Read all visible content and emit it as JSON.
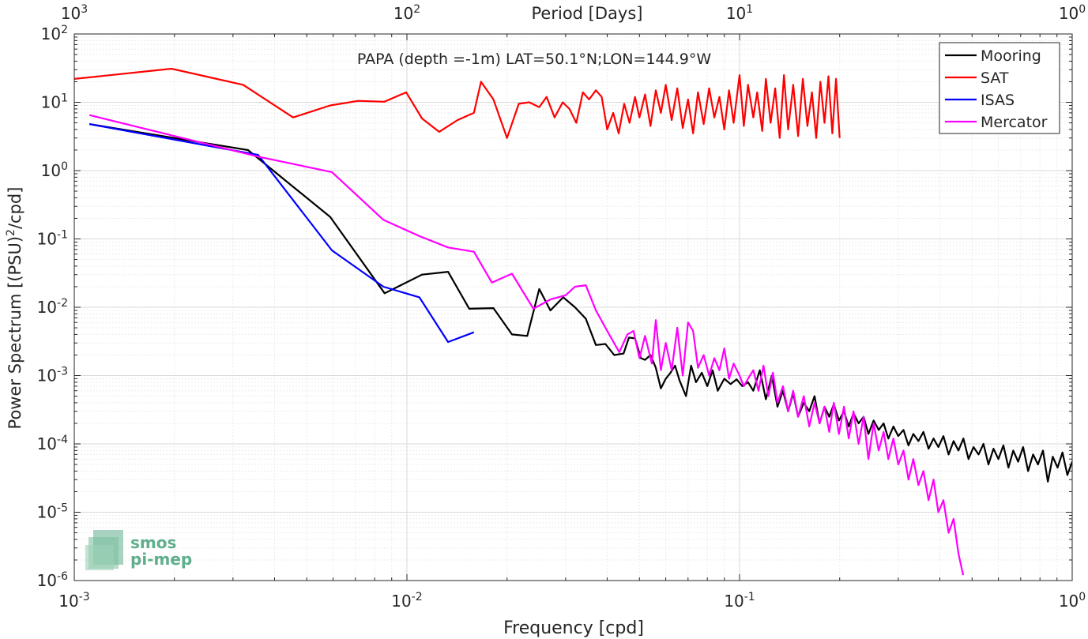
{
  "chart_data": {
    "type": "line",
    "title": "PAPA (depth =-1m) LAT=50.1°N;LON=144.9°W",
    "xlabel": "Frequency [cpd]",
    "ylabel_main": "Power Spectrum [(PSU)",
    "ylabel_sup": "2",
    "ylabel_tail": "/cpd]",
    "top_xlabel": "Period [Days]",
    "xscale": "log",
    "yscale": "log",
    "xlim": [
      0.001,
      1
    ],
    "ylim": [
      1e-06,
      100
    ],
    "grid": true,
    "legend_position": "top-right",
    "x_ticks": [
      {
        "value": 0.001,
        "base": "10",
        "exp": "-3"
      },
      {
        "value": 0.01,
        "base": "10",
        "exp": "-2"
      },
      {
        "value": 0.1,
        "base": "10",
        "exp": "-1"
      },
      {
        "value": 1,
        "base": "10",
        "exp": "0"
      }
    ],
    "top_ticks": [
      {
        "freq": 0.001,
        "base": "10",
        "exp": "3"
      },
      {
        "freq": 0.01,
        "base": "10",
        "exp": "2"
      },
      {
        "freq": 0.1,
        "base": "10",
        "exp": "1"
      },
      {
        "freq": 1,
        "base": "10",
        "exp": "0"
      }
    ],
    "y_ticks": [
      {
        "value": 1e-06,
        "base": "10",
        "exp": "-6"
      },
      {
        "value": 1e-05,
        "base": "10",
        "exp": "-5"
      },
      {
        "value": 0.0001,
        "base": "10",
        "exp": "-4"
      },
      {
        "value": 0.001,
        "base": "10",
        "exp": "-3"
      },
      {
        "value": 0.01,
        "base": "10",
        "exp": "-2"
      },
      {
        "value": 0.1,
        "base": "10",
        "exp": "-1"
      },
      {
        "value": 1,
        "base": "10",
        "exp": "0"
      },
      {
        "value": 10,
        "base": "10",
        "exp": "1"
      },
      {
        "value": 100,
        "base": "10",
        "exp": "2"
      }
    ],
    "series": [
      {
        "name": "Mooring",
        "color": "#000000",
        "x": [
          0.00111,
          0.00333,
          0.00588,
          0.00857,
          0.0111,
          0.0133,
          0.0154,
          0.0182,
          0.0207,
          0.023,
          0.025,
          0.027,
          0.0295,
          0.032,
          0.0345,
          0.037,
          0.0395,
          0.042,
          0.0448,
          0.0465,
          0.0485,
          0.0505,
          0.052,
          0.054,
          0.056,
          0.058,
          0.06,
          0.062,
          0.064,
          0.066,
          0.069,
          0.0715,
          0.074,
          0.077,
          0.08,
          0.083,
          0.086,
          0.09,
          0.094,
          0.098,
          0.102,
          0.106,
          0.11,
          0.115,
          0.12,
          0.125,
          0.13,
          0.135,
          0.14,
          0.145,
          0.15,
          0.156,
          0.162,
          0.168,
          0.174,
          0.18,
          0.186,
          0.192,
          0.199,
          0.206,
          0.213,
          0.22,
          0.228,
          0.236,
          0.244,
          0.253,
          0.262,
          0.271,
          0.28,
          0.29,
          0.3,
          0.311,
          0.322,
          0.333,
          0.345,
          0.357,
          0.37,
          0.383,
          0.396,
          0.41,
          0.425,
          0.44,
          0.455,
          0.471,
          0.488,
          0.505,
          0.523,
          0.541,
          0.56,
          0.58,
          0.6,
          0.621,
          0.643,
          0.665,
          0.688,
          0.712,
          0.737,
          0.763,
          0.789,
          0.817,
          0.845,
          0.874,
          0.904,
          0.935,
          0.967,
          1.0
        ],
        "y": [
          4.8,
          2.0,
          0.21,
          0.016,
          0.03,
          0.033,
          0.0095,
          0.0097,
          0.004,
          0.0038,
          0.0185,
          0.009,
          0.014,
          0.01,
          0.0068,
          0.0028,
          0.0029,
          0.002,
          0.0021,
          0.0036,
          0.0035,
          0.0018,
          0.0017,
          0.002,
          0.0013,
          0.00065,
          0.0009,
          0.0011,
          0.0014,
          0.00085,
          0.0005,
          0.0014,
          0.0008,
          0.0011,
          0.0007,
          0.0012,
          0.0006,
          0.0009,
          0.00075,
          0.00088,
          0.0007,
          0.0008,
          0.0006,
          0.0012,
          0.00045,
          0.001,
          0.00035,
          0.0006,
          0.0003,
          0.00055,
          0.00025,
          0.0004,
          0.0003,
          0.0005,
          0.0002,
          0.00035,
          0.00025,
          0.00038,
          0.00022,
          0.0003,
          0.00018,
          0.00028,
          0.0002,
          0.00025,
          0.00014,
          0.00022,
          0.00016,
          0.0002,
          0.00012,
          0.00018,
          0.00013,
          0.00016,
          9.5e-05,
          0.00014,
          0.00011,
          0.00015,
          8.5e-05,
          0.00012,
          9e-05,
          0.00013,
          7e-05,
          0.00011,
          8e-05,
          0.00012,
          6e-05,
          9e-05,
          7e-05,
          0.0001,
          5e-05,
          8.5e-05,
          6e-05,
          9.5e-05,
          4.5e-05,
          8e-05,
          5.5e-05,
          9e-05,
          4e-05,
          7e-05,
          5e-05,
          8e-05,
          2.8e-05,
          6.5e-05,
          4.5e-05,
          7.5e-05,
          3.5e-05,
          5.5e-05
        ]
      },
      {
        "name": "SAT",
        "color": "#ff0000",
        "x": [
          0.001,
          0.00196,
          0.00322,
          0.00455,
          0.00588,
          0.00714,
          0.00855,
          0.00995,
          0.0111,
          0.0125,
          0.0142,
          0.0159,
          0.0167,
          0.0182,
          0.02,
          0.0217,
          0.0233,
          0.025,
          0.0263,
          0.0278,
          0.0294,
          0.0308,
          0.0323,
          0.0338,
          0.0353,
          0.037,
          0.0385,
          0.04,
          0.0417,
          0.0433,
          0.045,
          0.0467,
          0.0485,
          0.05,
          0.052,
          0.054,
          0.056,
          0.058,
          0.06,
          0.0625,
          0.065,
          0.0675,
          0.07,
          0.0725,
          0.075,
          0.078,
          0.081,
          0.084,
          0.087,
          0.09,
          0.093,
          0.096,
          0.1,
          0.103,
          0.106,
          0.11,
          0.113,
          0.117,
          0.12,
          0.124,
          0.128,
          0.132,
          0.136,
          0.14,
          0.145,
          0.15,
          0.155,
          0.16,
          0.165,
          0.17,
          0.175,
          0.18,
          0.185,
          0.19,
          0.195,
          0.2
        ],
        "y": [
          22,
          31,
          18,
          6.0,
          9.0,
          10.5,
          10.2,
          14.0,
          5.8,
          3.7,
          5.5,
          7.0,
          20.0,
          11.0,
          3.0,
          9.5,
          10.0,
          8.5,
          12.0,
          6.0,
          10.0,
          8.0,
          5.0,
          14.0,
          11.0,
          15.0,
          12.0,
          4.0,
          7.0,
          3.5,
          9.5,
          5.0,
          12.0,
          6.0,
          13.0,
          4.5,
          15.0,
          7.0,
          18.0,
          5.5,
          16.0,
          4.2,
          11.0,
          3.5,
          14.0,
          4.8,
          16.0,
          6.0,
          12.0,
          4.0,
          15.0,
          5.0,
          25.0,
          4.5,
          18.0,
          6.0,
          14.0,
          3.8,
          22.0,
          5.0,
          16.0,
          3.0,
          25.0,
          4.0,
          18.0,
          3.2,
          22.0,
          4.5,
          14.0,
          3.0,
          20.0,
          5.0,
          24.0,
          3.5,
          22.0,
          3.0
        ]
      },
      {
        "name": "ISAS",
        "color": "#0000ff",
        "x": [
          0.00111,
          0.00357,
          0.00595,
          0.0085,
          0.0109,
          0.0133,
          0.0159
        ],
        "y": [
          4.8,
          1.7,
          0.068,
          0.02,
          0.014,
          0.0031,
          0.0043
        ]
      },
      {
        "name": "Mercator",
        "color": "#ff00ff",
        "x": [
          0.00111,
          0.00357,
          0.00595,
          0.0085,
          0.0109,
          0.0133,
          0.0159,
          0.018,
          0.0207,
          0.024,
          0.027,
          0.03,
          0.032,
          0.0345,
          0.037,
          0.04,
          0.0435,
          0.046,
          0.048,
          0.05,
          0.052,
          0.0545,
          0.056,
          0.058,
          0.06,
          0.0625,
          0.065,
          0.0675,
          0.07,
          0.0725,
          0.075,
          0.078,
          0.081,
          0.084,
          0.087,
          0.09,
          0.093,
          0.096,
          0.1,
          0.103,
          0.106,
          0.11,
          0.114,
          0.118,
          0.122,
          0.126,
          0.13,
          0.135,
          0.14,
          0.145,
          0.15,
          0.156,
          0.162,
          0.168,
          0.174,
          0.18,
          0.186,
          0.192,
          0.199,
          0.206,
          0.213,
          0.22,
          0.228,
          0.236,
          0.244,
          0.253,
          0.262,
          0.271,
          0.28,
          0.29,
          0.3,
          0.311,
          0.322,
          0.333,
          0.345,
          0.357,
          0.37,
          0.383,
          0.396,
          0.41,
          0.425,
          0.44,
          0.455,
          0.47
        ],
        "y": [
          6.5,
          1.6,
          0.95,
          0.19,
          0.11,
          0.075,
          0.065,
          0.023,
          0.031,
          0.0095,
          0.013,
          0.015,
          0.02,
          0.021,
          0.009,
          0.0045,
          0.0022,
          0.004,
          0.0045,
          0.0018,
          0.0038,
          0.0015,
          0.0065,
          0.0012,
          0.003,
          0.0012,
          0.005,
          0.001,
          0.006,
          0.0045,
          0.0013,
          0.002,
          0.001,
          0.0018,
          0.0012,
          0.0025,
          0.0009,
          0.0015,
          0.001,
          0.0007,
          0.0009,
          0.0012,
          0.0006,
          0.0014,
          0.0005,
          0.0011,
          0.0004,
          0.0007,
          0.0003,
          0.0006,
          0.00025,
          0.0005,
          0.00018,
          0.0004,
          0.0002,
          0.00035,
          0.00015,
          0.0004,
          0.00014,
          0.00035,
          0.00012,
          0.0003,
          0.0001,
          0.00025,
          6e-05,
          0.0002,
          8e-05,
          0.00015,
          6e-05,
          0.00012,
          5e-05,
          8e-05,
          3e-05,
          6e-05,
          2.5e-05,
          4e-05,
          1.5e-05,
          3e-05,
          1e-05,
          1.5e-05,
          5e-06,
          8e-06,
          2.5e-06,
          1.2e-06
        ]
      }
    ]
  },
  "watermark": {
    "logo_line1": "smos",
    "logo_line2": "pi-mep",
    "logo_color": "#5fae8c"
  }
}
